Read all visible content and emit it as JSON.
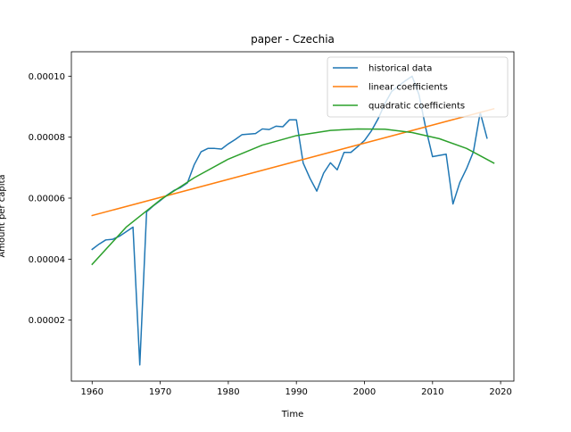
{
  "chart_data": {
    "type": "line",
    "title": "paper - Czechia",
    "xlabel": "Time",
    "ylabel": "Amount per capita",
    "xlim": [
      1956.95,
      2021.95
    ],
    "ylim": [
      0,
      0.000108
    ],
    "xticks": [
      1960,
      1970,
      1980,
      1990,
      2000,
      2010,
      2020
    ],
    "yticks": [
      2e-05,
      4e-05,
      6e-05,
      8e-05,
      0.0001
    ],
    "ytick_labels": [
      "0.00002",
      "0.00004",
      "0.00006",
      "0.00008",
      "0.00010"
    ],
    "grid": false,
    "legend_position": "top-right",
    "series": [
      {
        "name": "historical data",
        "color": "#1f77b4",
        "x": [
          1960,
          1961,
          1962,
          1963,
          1964,
          1965,
          1966,
          1967,
          1968,
          1969,
          1970,
          1971,
          1972,
          1973,
          1974,
          1975,
          1976,
          1977,
          1978,
          1979,
          1980,
          1981,
          1982,
          1983,
          1984,
          1985,
          1986,
          1987,
          1988,
          1989,
          1990,
          1991,
          1992,
          1993,
          1994,
          1995,
          1996,
          1997,
          1998,
          1999,
          2000,
          2001,
          2002,
          2003,
          2004,
          2005,
          2006,
          2007,
          2008,
          2009,
          2010,
          2011,
          2012,
          2013,
          2014,
          2015,
          2016,
          2017,
          2018
        ],
        "y": [
          4.32e-05,
          4.49e-05,
          4.63e-05,
          4.65e-05,
          4.75e-05,
          4.9e-05,
          5.05e-05,
          5.3e-06,
          5.55e-05,
          5.75e-05,
          5.92e-05,
          6.1e-05,
          6.25e-05,
          6.35e-05,
          6.5e-05,
          7.1e-05,
          7.52e-05,
          7.63e-05,
          7.63e-05,
          7.61e-05,
          7.78e-05,
          7.92e-05,
          8.08e-05,
          8.1e-05,
          8.12e-05,
          8.27e-05,
          8.25e-05,
          8.36e-05,
          8.34e-05,
          8.57e-05,
          8.57e-05,
          7.15e-05,
          6.65e-05,
          6.23e-05,
          6.82e-05,
          7.16e-05,
          6.93e-05,
          7.5e-05,
          7.5e-05,
          7.69e-05,
          7.89e-05,
          8.2e-05,
          8.6e-05,
          9.1e-05,
          9.5e-05,
          9.68e-05,
          9.85e-05,
          0.0001,
          9.4e-05,
          8.3e-05,
          7.36e-05,
          7.4e-05,
          7.44e-05,
          5.81e-05,
          6.51e-05,
          6.97e-05,
          7.52e-05,
          8.81e-05,
          7.97e-05
        ]
      },
      {
        "name": "linear coefficients",
        "color": "#ff7f0e",
        "x": [
          1960,
          2019
        ],
        "y": [
          5.43e-05,
          8.93e-05
        ]
      },
      {
        "name": "quadratic coefficients",
        "color": "#2ca02c",
        "x": [
          1960,
          1965,
          1970,
          1975,
          1980,
          1985,
          1990,
          1995,
          1999,
          2003,
          2007,
          2011,
          2015,
          2019
        ],
        "y": [
          3.83e-05,
          5.05e-05,
          5.94e-05,
          6.67e-05,
          7.28e-05,
          7.74e-05,
          8.05e-05,
          8.22e-05,
          8.27e-05,
          8.26e-05,
          8.15e-05,
          7.95e-05,
          7.63e-05,
          7.15e-05
        ]
      }
    ]
  }
}
